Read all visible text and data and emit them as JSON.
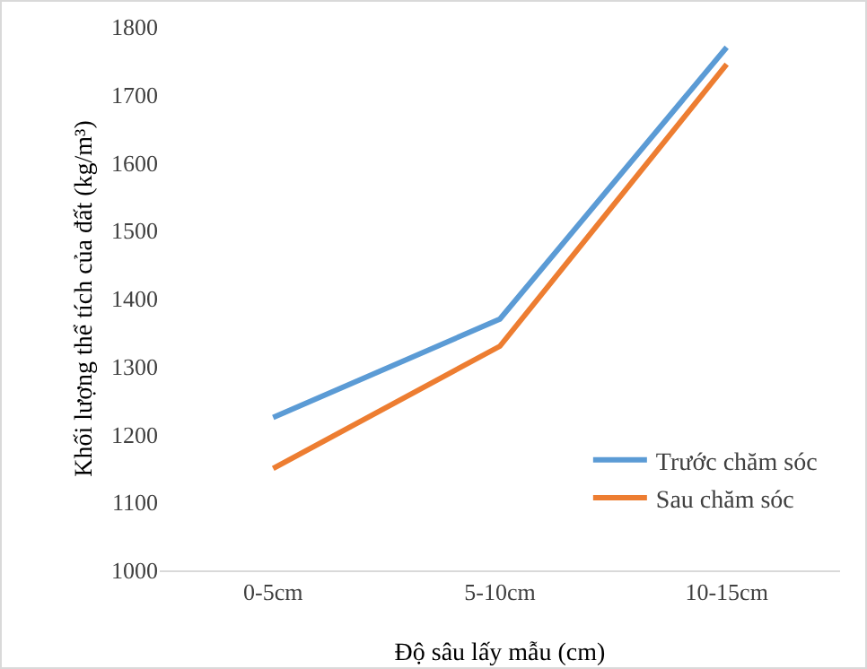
{
  "chart_data": {
    "type": "line",
    "xlabel": "Độ sâu lấy mẫu (cm)",
    "ylabel": "Khối lượng thể tích của đất (kg/m³)",
    "categories": [
      "0-5cm",
      "5-10cm",
      "10-15cm"
    ],
    "series": [
      {
        "name": "Trước chăm sóc",
        "color": "#5b9bd5",
        "values": [
          1225,
          1370,
          1770
        ]
      },
      {
        "name": "Sau chăm sóc",
        "color": "#ed7d31",
        "values": [
          1150,
          1330,
          1745
        ]
      }
    ],
    "ylim": [
      1000,
      1800
    ],
    "yticks": [
      1000,
      1100,
      1200,
      1300,
      1400,
      1500,
      1600,
      1700,
      1800
    ],
    "grid": false,
    "legend": "bottom right",
    "marker": "none",
    "line_style": "solid"
  }
}
